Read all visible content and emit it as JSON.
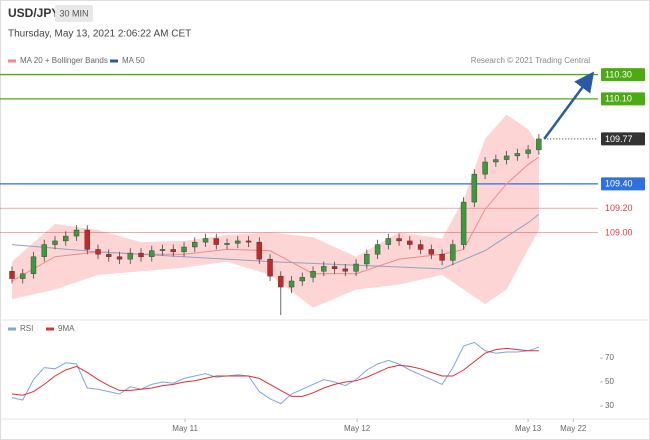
{
  "header": {
    "symbol": "USD/JPY",
    "interval": "30 MIN",
    "timestamp": "Thursday, May 13, 2021 2:06:22 AM CET",
    "credit": "Research © 2021 Trading Central"
  },
  "chart_data": [
    {
      "type": "candlestick",
      "xlim": [
        -0.65,
        54.5
      ],
      "ylim": [
        108.32,
        110.42
      ],
      "candles": {
        "up_color": "#3c9a3c",
        "down_color": "#c62828",
        "open": [
          108.68,
          108.62,
          108.66,
          108.8,
          108.9,
          108.93,
          108.97,
          109.02,
          108.86,
          108.82,
          108.8,
          108.78,
          108.83,
          108.8,
          108.85,
          108.86,
          108.84,
          108.88,
          108.92,
          108.95,
          108.9,
          108.91,
          108.93,
          108.92,
          108.78,
          108.64,
          108.55,
          108.6,
          108.63,
          108.68,
          108.72,
          108.7,
          108.68,
          108.74,
          108.82,
          108.9,
          108.95,
          108.93,
          108.9,
          108.86,
          108.82,
          108.77,
          108.9,
          109.25,
          109.48,
          109.58,
          109.6,
          109.63,
          109.65,
          109.68
        ],
        "high": [
          108.72,
          108.7,
          108.84,
          108.94,
          108.97,
          109.01,
          109.06,
          109.06,
          108.9,
          108.86,
          108.84,
          108.87,
          108.87,
          108.89,
          108.9,
          108.9,
          108.92,
          108.96,
          108.99,
          108.99,
          108.95,
          108.97,
          108.97,
          108.96,
          108.82,
          108.68,
          108.64,
          108.67,
          108.72,
          108.76,
          108.76,
          108.74,
          108.78,
          108.86,
          108.94,
          108.99,
          108.99,
          108.97,
          108.94,
          108.9,
          108.86,
          108.94,
          109.29,
          109.52,
          109.62,
          109.64,
          109.67,
          109.69,
          109.72,
          109.81
        ],
        "low": [
          108.58,
          108.58,
          108.62,
          108.76,
          108.86,
          108.89,
          108.93,
          108.82,
          108.78,
          108.76,
          108.74,
          108.74,
          108.76,
          108.76,
          108.81,
          108.8,
          108.8,
          108.84,
          108.88,
          108.86,
          108.86,
          108.87,
          108.88,
          108.74,
          108.6,
          108.32,
          108.5,
          108.56,
          108.59,
          108.64,
          108.66,
          108.64,
          108.64,
          108.7,
          108.78,
          108.86,
          108.89,
          108.86,
          108.82,
          108.78,
          108.73,
          108.73,
          108.86,
          109.21,
          109.44,
          109.54,
          109.56,
          109.59,
          109.61,
          109.64
        ],
        "close": [
          108.62,
          108.66,
          108.8,
          108.9,
          108.93,
          108.97,
          109.02,
          108.86,
          108.82,
          108.8,
          108.78,
          108.83,
          108.8,
          108.85,
          108.86,
          108.84,
          108.88,
          108.92,
          108.95,
          108.9,
          108.91,
          108.93,
          108.92,
          108.78,
          108.64,
          108.55,
          108.6,
          108.63,
          108.68,
          108.72,
          108.7,
          108.68,
          108.74,
          108.82,
          108.9,
          108.95,
          108.93,
          108.9,
          108.86,
          108.82,
          108.77,
          108.9,
          109.25,
          109.48,
          109.58,
          109.6,
          109.63,
          109.65,
          109.68,
          109.77
        ]
      },
      "series": [
        {
          "name": "MA 20 + Bollinger Bands",
          "color": "#f08a8a",
          "band_color": "#fdd5d5",
          "x": [
            0,
            4,
            8,
            12,
            16,
            20,
            24,
            28,
            32,
            36,
            40,
            42,
            44,
            46,
            48,
            49
          ],
          "values": [
            108.6,
            108.8,
            108.84,
            108.82,
            108.82,
            108.86,
            108.85,
            108.66,
            108.66,
            108.78,
            108.82,
            108.86,
            109.19,
            109.4,
            109.56,
            109.62
          ],
          "upper": [
            108.76,
            109.07,
            109.02,
            108.92,
            108.93,
            108.98,
            109.0,
            108.96,
            108.8,
            109.0,
            108.95,
            109.27,
            109.77,
            109.97,
            109.85,
            109.72
          ],
          "lower": [
            108.45,
            108.53,
            108.65,
            108.68,
            108.71,
            108.76,
            108.65,
            108.38,
            108.53,
            108.57,
            108.65,
            108.53,
            108.41,
            108.53,
            108.86,
            109.02
          ]
        },
        {
          "name": "MA 50",
          "color": "#2c5aa0",
          "line_color": "#8fa3c7",
          "x": [
            0,
            8,
            16,
            24,
            32,
            40,
            44,
            48,
            49
          ],
          "values": [
            108.9,
            108.84,
            108.8,
            108.76,
            108.73,
            108.7,
            108.85,
            109.08,
            109.15
          ]
        }
      ],
      "levels": [
        {
          "value": 110.3,
          "label": "110.30",
          "color": "#4caa14",
          "style": "box",
          "line": "solid"
        },
        {
          "value": 110.1,
          "label": "110.10",
          "color": "#4caa14",
          "style": "box",
          "line": "solid"
        },
        {
          "value": 109.77,
          "label": "109.77",
          "color": "#333333",
          "style": "box",
          "line": "dotted"
        },
        {
          "value": 109.4,
          "label": "109.40",
          "color": "#2f6fe0",
          "style": "box",
          "line": "solid"
        },
        {
          "value": 109.2,
          "label": "109.20",
          "color": "#e04040",
          "style": "text",
          "line": "faint"
        },
        {
          "value": 109.0,
          "label": "109.00",
          "color": "#e04040",
          "style": "text",
          "line": "faint"
        }
      ],
      "projection": {
        "x": [
          49.5,
          54.0
        ],
        "values": [
          109.77,
          110.3
        ],
        "color": "#2c5aa0"
      }
    },
    {
      "type": "line",
      "xlim": [
        -0.65,
        54.5
      ],
      "ylim": [
        20,
        85
      ],
      "yticks": [
        30,
        50,
        70
      ],
      "xticks": [
        {
          "value": 16.1,
          "label": "May 11"
        },
        {
          "value": 32.1,
          "label": "May 12"
        },
        {
          "value": 48.0,
          "label": "May 13"
        },
        {
          "value": 52.2,
          "label": "May 22"
        }
      ],
      "series": [
        {
          "name": "RSI",
          "color": "#7da7e0",
          "values": [
            37,
            35,
            52,
            62,
            61,
            66,
            65,
            45,
            44,
            42,
            40,
            46,
            44,
            48,
            50,
            49,
            53,
            55,
            57,
            54,
            55,
            56,
            55,
            42,
            36,
            32,
            40,
            44,
            48,
            52,
            50,
            47,
            52,
            60,
            65,
            68,
            65,
            60,
            56,
            52,
            48,
            62,
            80,
            83,
            76,
            74,
            75,
            75,
            76,
            79
          ]
        },
        {
          "name": "9MA",
          "color": "#e03030",
          "values": [
            40,
            39,
            42,
            48,
            55,
            60,
            63,
            58,
            52,
            47,
            43,
            43,
            44,
            45,
            47,
            48,
            50,
            51,
            53,
            55,
            55,
            55,
            55,
            53,
            48,
            43,
            38,
            38,
            41,
            45,
            48,
            50,
            51,
            54,
            58,
            62,
            64,
            63,
            61,
            58,
            55,
            55,
            60,
            67,
            74,
            77,
            78,
            77,
            76,
            76
          ]
        }
      ]
    }
  ]
}
